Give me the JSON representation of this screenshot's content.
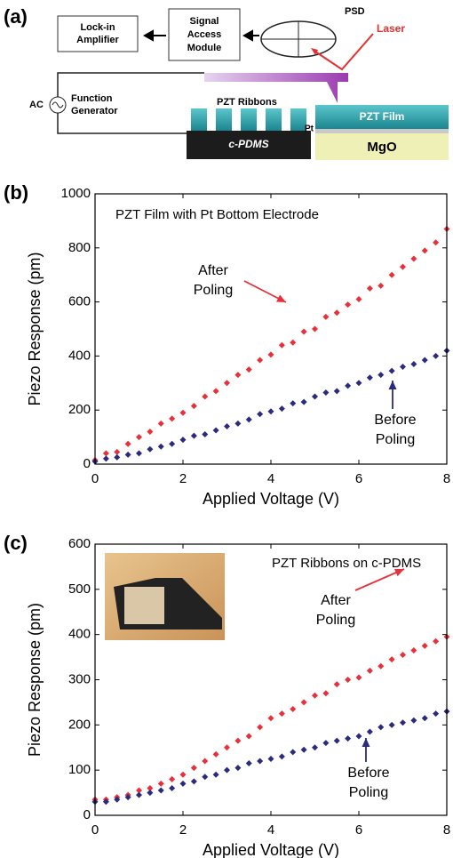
{
  "panel_a": {
    "label": "(a)",
    "lock_in": [
      "Lock-in",
      "Amplifier"
    ],
    "signal_module": [
      "Signal",
      "Access",
      "Module"
    ],
    "psd": "PSD",
    "laser": "Laser",
    "ac": "AC",
    "function_generator": [
      "Function",
      "Generator"
    ],
    "pzt_ribbons": "PZT Ribbons",
    "c_pdms": "c-PDMS",
    "pzt_film": "PZT Film",
    "pt": "Pt",
    "mgo": "MgO"
  },
  "chart_data": [
    {
      "type": "scatter",
      "panel_label": "(b)",
      "title": "PZT Film with Pt Bottom Electrode",
      "x_label": "Applied Voltage (V)",
      "y_label": "Piezo Response (pm)",
      "x": [
        0,
        0.25,
        0.5,
        0.75,
        1,
        1.25,
        1.5,
        1.75,
        2,
        2.25,
        2.5,
        2.75,
        3,
        3.25,
        3.5,
        3.75,
        4,
        4.25,
        4.5,
        4.75,
        5,
        5.25,
        5.5,
        5.75,
        6,
        6.25,
        6.5,
        6.75,
        7,
        7.25,
        7.5,
        7.75,
        8
      ],
      "xlim": [
        0,
        8
      ],
      "xticks": [
        0,
        2,
        4,
        6,
        8
      ],
      "ylim": [
        0,
        1000
      ],
      "yticks": [
        0,
        200,
        400,
        600,
        800,
        1000
      ],
      "series": [
        {
          "label_lines": [
            "After",
            "Poling"
          ],
          "color": "#e8303a",
          "values": [
            15,
            40,
            45,
            75,
            100,
            120,
            150,
            168,
            190,
            215,
            250,
            270,
            300,
            330,
            350,
            385,
            405,
            440,
            450,
            490,
            500,
            545,
            560,
            590,
            610,
            650,
            660,
            700,
            730,
            760,
            790,
            820,
            870
          ]
        },
        {
          "label_lines": [
            "Before",
            "Poling"
          ],
          "color": "#2b2b7e",
          "values": [
            10,
            20,
            25,
            35,
            40,
            55,
            65,
            75,
            90,
            105,
            110,
            125,
            140,
            150,
            165,
            185,
            195,
            205,
            225,
            230,
            250,
            265,
            270,
            290,
            300,
            320,
            330,
            345,
            360,
            370,
            385,
            400,
            420
          ]
        }
      ]
    },
    {
      "type": "scatter",
      "panel_label": "(c)",
      "title": "PZT Ribbons on c-PDMS",
      "x_label": "Applied Voltage (V)",
      "y_label": "Piezo Response (pm)",
      "x": [
        0,
        0.25,
        0.5,
        0.75,
        1,
        1.25,
        1.5,
        1.75,
        2,
        2.25,
        2.5,
        2.75,
        3,
        3.25,
        3.5,
        3.75,
        4,
        4.25,
        4.5,
        4.75,
        5,
        5.25,
        5.5,
        5.75,
        6,
        6.25,
        6.5,
        6.75,
        7,
        7.25,
        7.5,
        7.75,
        8
      ],
      "xlim": [
        0,
        8
      ],
      "xticks": [
        0,
        2,
        4,
        6,
        8
      ],
      "ylim": [
        0,
        600
      ],
      "yticks": [
        0,
        100,
        200,
        300,
        400,
        500,
        600
      ],
      "series": [
        {
          "label_lines": [
            "After",
            "Poling"
          ],
          "color": "#e8303a",
          "values": [
            35,
            35,
            40,
            45,
            55,
            60,
            70,
            80,
            90,
            105,
            120,
            135,
            150,
            165,
            175,
            195,
            215,
            225,
            235,
            250,
            265,
            270,
            290,
            300,
            305,
            320,
            330,
            345,
            355,
            365,
            375,
            385,
            395
          ]
        },
        {
          "label_lines": [
            "Before",
            "Poling"
          ],
          "color": "#2b2b7e",
          "values": [
            30,
            30,
            35,
            40,
            45,
            50,
            55,
            60,
            70,
            75,
            85,
            90,
            100,
            105,
            115,
            120,
            125,
            130,
            140,
            145,
            150,
            160,
            165,
            170,
            175,
            185,
            195,
            200,
            205,
            210,
            215,
            225,
            230
          ]
        }
      ]
    }
  ]
}
